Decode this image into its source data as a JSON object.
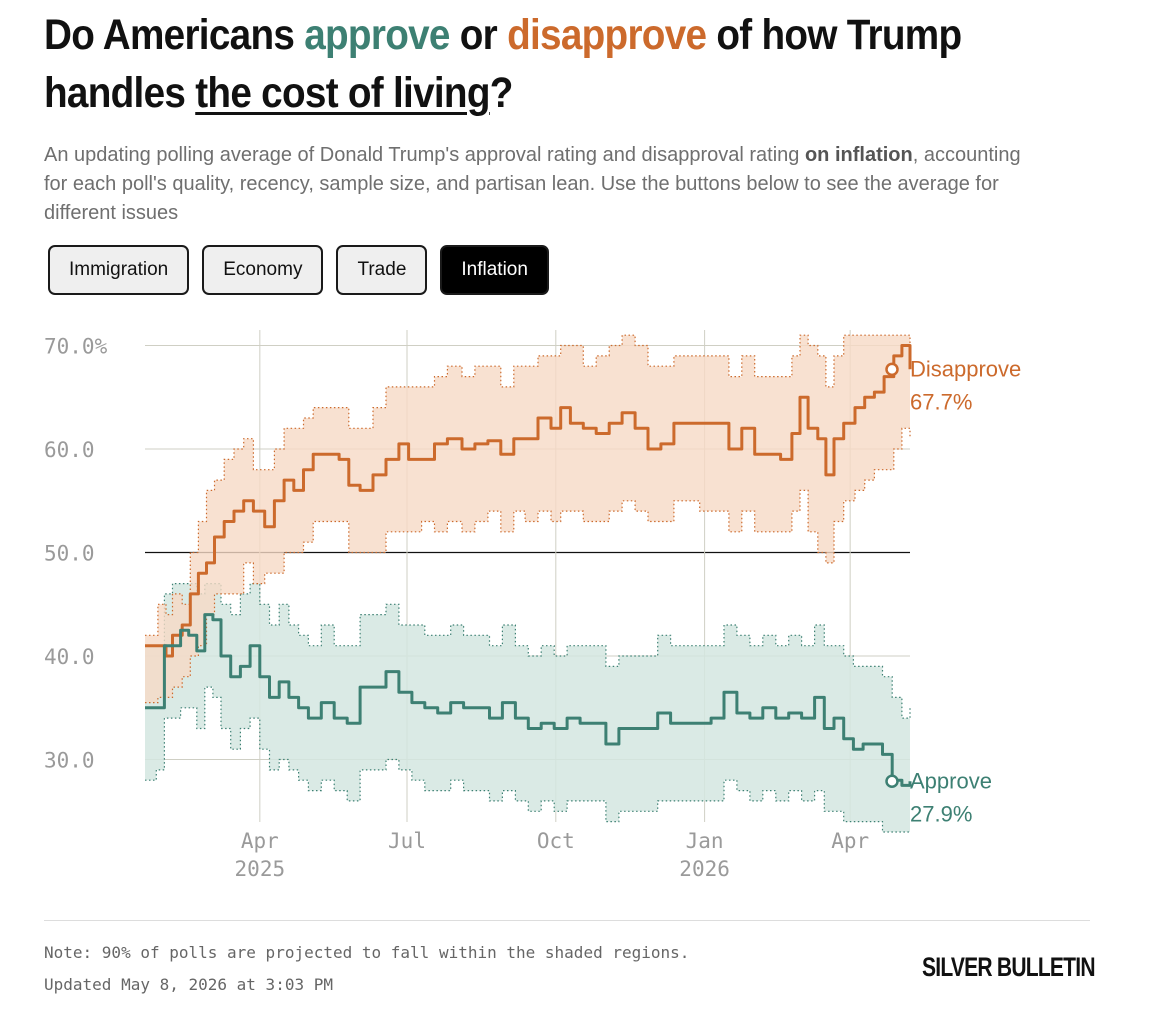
{
  "title": {
    "part1": "Do Americans ",
    "approve_word": "approve",
    "part2": " or ",
    "disapprove_word": "disapprove",
    "part3": " of how Trump handles ",
    "topic": "the cost of living",
    "part4": "?"
  },
  "subtitle": {
    "before": "An updating polling average of Donald Trump's approval rating and disapproval rating ",
    "bold": "on inflation",
    "after": ", accounting for each poll's quality, recency, sample size, and partisan lean. Use the buttons below to see the average for different issues"
  },
  "tabs": [
    {
      "label": "Immigration",
      "active": false
    },
    {
      "label": "Economy",
      "active": false
    },
    {
      "label": "Trade",
      "active": false
    },
    {
      "label": "Inflation",
      "active": true
    }
  ],
  "colors": {
    "approve": "#3d8073",
    "approve_band": "#d3e6e1",
    "disapprove": "#cc6a2c",
    "disapprove_band": "#f6d9c6",
    "grid": "#cfcfc4",
    "axis_text": "#9a9a9a"
  },
  "chart_data": {
    "type": "line",
    "x_range": [
      "2025-01-20",
      "2026-05-08"
    ],
    "ylim": [
      23,
      71.5
    ],
    "y_ticks": [
      {
        "value": 70,
        "label": "70.0%"
      },
      {
        "value": 60,
        "label": "60.0"
      },
      {
        "value": 50,
        "label": "50.0"
      },
      {
        "value": 40,
        "label": "40.0"
      },
      {
        "value": 30,
        "label": "30.0"
      }
    ],
    "x_ticks": [
      {
        "date": "2025-04-01",
        "label": "Apr",
        "year": "2025"
      },
      {
        "date": "2025-07-01",
        "label": "Jul",
        "year": ""
      },
      {
        "date": "2025-10-01",
        "label": "Oct",
        "year": ""
      },
      {
        "date": "2026-01-01",
        "label": "Jan",
        "year": "2026"
      },
      {
        "date": "2026-04-01",
        "label": "Apr",
        "year": ""
      }
    ],
    "reference_line": 50,
    "grid": true,
    "series": [
      {
        "name": "Disapprove",
        "end_label": "Disapprove",
        "end_value_label": "67.7%",
        "points": [
          [
            "2025-01-20",
            41
          ],
          [
            "2025-01-28",
            41
          ],
          [
            "2025-02-02",
            40
          ],
          [
            "2025-02-06",
            42
          ],
          [
            "2025-02-12",
            43
          ],
          [
            "2025-02-17",
            46
          ],
          [
            "2025-02-22",
            48
          ],
          [
            "2025-02-27",
            49
          ],
          [
            "2025-03-04",
            51.5
          ],
          [
            "2025-03-10",
            53
          ],
          [
            "2025-03-16",
            54
          ],
          [
            "2025-03-22",
            55
          ],
          [
            "2025-03-28",
            54
          ],
          [
            "2025-04-04",
            52.5
          ],
          [
            "2025-04-10",
            55
          ],
          [
            "2025-04-16",
            57
          ],
          [
            "2025-04-22",
            56
          ],
          [
            "2025-04-28",
            58
          ],
          [
            "2025-05-04",
            59.5
          ],
          [
            "2025-05-12",
            59.5
          ],
          [
            "2025-05-20",
            59
          ],
          [
            "2025-05-26",
            56.5
          ],
          [
            "2025-06-02",
            56
          ],
          [
            "2025-06-10",
            57.5
          ],
          [
            "2025-06-18",
            59
          ],
          [
            "2025-06-26",
            60.5
          ],
          [
            "2025-07-02",
            59
          ],
          [
            "2025-07-10",
            59
          ],
          [
            "2025-07-18",
            60.5
          ],
          [
            "2025-07-26",
            61
          ],
          [
            "2025-08-04",
            60
          ],
          [
            "2025-08-12",
            60.5
          ],
          [
            "2025-08-20",
            60.8
          ],
          [
            "2025-08-28",
            59.5
          ],
          [
            "2025-09-05",
            61
          ],
          [
            "2025-09-12",
            61
          ],
          [
            "2025-09-20",
            63
          ],
          [
            "2025-09-28",
            62
          ],
          [
            "2025-10-04",
            64
          ],
          [
            "2025-10-10",
            62.5
          ],
          [
            "2025-10-18",
            62
          ],
          [
            "2025-10-26",
            61.5
          ],
          [
            "2025-11-03",
            62.5
          ],
          [
            "2025-11-11",
            63.5
          ],
          [
            "2025-11-19",
            62
          ],
          [
            "2025-11-27",
            60
          ],
          [
            "2025-12-05",
            60.5
          ],
          [
            "2025-12-13",
            62.5
          ],
          [
            "2025-12-21",
            62.5
          ],
          [
            "2025-12-29",
            62.5
          ],
          [
            "2026-01-08",
            62.5
          ],
          [
            "2026-01-16",
            60
          ],
          [
            "2026-01-24",
            62
          ],
          [
            "2026-02-01",
            59.5
          ],
          [
            "2026-02-09",
            59.5
          ],
          [
            "2026-02-17",
            59
          ],
          [
            "2026-02-24",
            61.5
          ],
          [
            "2026-03-01",
            65
          ],
          [
            "2026-03-06",
            62
          ],
          [
            "2026-03-12",
            61
          ],
          [
            "2026-03-17",
            57.5
          ],
          [
            "2026-03-22",
            61
          ],
          [
            "2026-03-28",
            62.5
          ],
          [
            "2026-04-04",
            64
          ],
          [
            "2026-04-10",
            65
          ],
          [
            "2026-04-16",
            65.5
          ],
          [
            "2026-04-22",
            67
          ],
          [
            "2026-04-28",
            69
          ],
          [
            "2026-05-03",
            70
          ],
          [
            "2026-05-08",
            67.7
          ]
        ],
        "band": [
          [
            42,
            35.5
          ],
          [
            45,
            36
          ],
          [
            44,
            36
          ],
          [
            46,
            37
          ],
          [
            45,
            38
          ],
          [
            50,
            40
          ],
          [
            53,
            41
          ],
          [
            56,
            44
          ],
          [
            57,
            46
          ],
          [
            59,
            46
          ],
          [
            60,
            46
          ],
          [
            61,
            49
          ],
          [
            58,
            47
          ],
          [
            58,
            48
          ],
          [
            60,
            48
          ],
          [
            62,
            50
          ],
          [
            62,
            50
          ],
          [
            63,
            51
          ],
          [
            64,
            53
          ],
          [
            64,
            53
          ],
          [
            64,
            53
          ],
          [
            62,
            50
          ],
          [
            62,
            50
          ],
          [
            64,
            50
          ],
          [
            66,
            52
          ],
          [
            66,
            52
          ],
          [
            66,
            52
          ],
          [
            66,
            53
          ],
          [
            67,
            52
          ],
          [
            68,
            53
          ],
          [
            67,
            52
          ],
          [
            68,
            53
          ],
          [
            68,
            54
          ],
          [
            66,
            52
          ],
          [
            68,
            54
          ],
          [
            68,
            53
          ],
          [
            69,
            54
          ],
          [
            69,
            53
          ],
          [
            70,
            54
          ],
          [
            70,
            54
          ],
          [
            68,
            53
          ],
          [
            69,
            53
          ],
          [
            70,
            54
          ],
          [
            71,
            55
          ],
          [
            70,
            54
          ],
          [
            68,
            53
          ],
          [
            68,
            53
          ],
          [
            69,
            55
          ],
          [
            69,
            55
          ],
          [
            69,
            54
          ],
          [
            69,
            54
          ],
          [
            67,
            52
          ],
          [
            69,
            54
          ],
          [
            67,
            52
          ],
          [
            67,
            52
          ],
          [
            67,
            52
          ],
          [
            69,
            54
          ],
          [
            71,
            56
          ],
          [
            70,
            52
          ],
          [
            69,
            50
          ],
          [
            66,
            49
          ],
          [
            69,
            53
          ],
          [
            71,
            55
          ],
          [
            71,
            56
          ],
          [
            71,
            57
          ],
          [
            71,
            58
          ],
          [
            71,
            58
          ],
          [
            71,
            60
          ],
          [
            71,
            62
          ],
          [
            69,
            61
          ]
        ]
      },
      {
        "name": "Approve",
        "end_label": "Approve",
        "end_value_label": "27.9%",
        "points": [
          [
            "2025-01-20",
            35
          ],
          [
            "2025-01-27",
            35
          ],
          [
            "2025-02-01",
            41
          ],
          [
            "2025-02-06",
            41
          ],
          [
            "2025-02-11",
            42.5
          ],
          [
            "2025-02-16",
            42
          ],
          [
            "2025-02-21",
            40.5
          ],
          [
            "2025-02-26",
            44
          ],
          [
            "2025-03-03",
            43.5
          ],
          [
            "2025-03-08",
            40
          ],
          [
            "2025-03-14",
            38
          ],
          [
            "2025-03-20",
            39
          ],
          [
            "2025-03-26",
            41
          ],
          [
            "2025-04-01",
            38
          ],
          [
            "2025-04-07",
            36
          ],
          [
            "2025-04-13",
            37.5
          ],
          [
            "2025-04-19",
            36
          ],
          [
            "2025-04-25",
            35
          ],
          [
            "2025-05-01",
            34
          ],
          [
            "2025-05-09",
            35.5
          ],
          [
            "2025-05-17",
            34
          ],
          [
            "2025-05-25",
            33.5
          ],
          [
            "2025-06-02",
            37
          ],
          [
            "2025-06-10",
            37
          ],
          [
            "2025-06-18",
            38.5
          ],
          [
            "2025-06-26",
            36.5
          ],
          [
            "2025-07-04",
            35.5
          ],
          [
            "2025-07-12",
            35
          ],
          [
            "2025-07-20",
            34.5
          ],
          [
            "2025-07-28",
            35.5
          ],
          [
            "2025-08-05",
            35
          ],
          [
            "2025-08-13",
            35
          ],
          [
            "2025-08-21",
            34
          ],
          [
            "2025-08-29",
            35.5
          ],
          [
            "2025-09-06",
            34
          ],
          [
            "2025-09-14",
            33
          ],
          [
            "2025-09-22",
            33.5
          ],
          [
            "2025-09-30",
            33
          ],
          [
            "2025-10-08",
            34
          ],
          [
            "2025-10-16",
            33.5
          ],
          [
            "2025-10-24",
            33.5
          ],
          [
            "2025-11-01",
            31.5
          ],
          [
            "2025-11-09",
            33
          ],
          [
            "2025-11-17",
            33
          ],
          [
            "2025-11-25",
            33
          ],
          [
            "2025-12-03",
            34.5
          ],
          [
            "2025-12-11",
            33.5
          ],
          [
            "2025-12-19",
            33.5
          ],
          [
            "2025-12-27",
            33.5
          ],
          [
            "2026-01-05",
            34
          ],
          [
            "2026-01-13",
            36.5
          ],
          [
            "2026-01-21",
            34.5
          ],
          [
            "2026-01-29",
            34
          ],
          [
            "2026-02-06",
            35
          ],
          [
            "2026-02-14",
            34
          ],
          [
            "2026-02-22",
            34.5
          ],
          [
            "2026-03-02",
            34
          ],
          [
            "2026-03-10",
            36
          ],
          [
            "2026-03-16",
            33
          ],
          [
            "2026-03-22",
            34
          ],
          [
            "2026-03-28",
            32
          ],
          [
            "2026-04-03",
            31
          ],
          [
            "2026-04-09",
            31.5
          ],
          [
            "2026-04-15",
            31.5
          ],
          [
            "2026-04-21",
            30.5
          ],
          [
            "2026-04-27",
            28
          ],
          [
            "2026-05-03",
            27.5
          ],
          [
            "2026-05-08",
            27.9
          ]
        ],
        "band": [
          [
            41,
            28
          ],
          [
            41,
            29
          ],
          [
            46,
            34
          ],
          [
            47,
            34
          ],
          [
            47,
            35
          ],
          [
            47,
            35
          ],
          [
            46,
            33
          ],
          [
            47,
            37
          ],
          [
            47,
            36
          ],
          [
            45,
            33
          ],
          [
            44,
            31
          ],
          [
            46,
            33
          ],
          [
            47,
            34
          ],
          [
            45,
            31
          ],
          [
            43,
            29
          ],
          [
            45,
            30
          ],
          [
            43,
            29
          ],
          [
            42,
            28
          ],
          [
            41,
            27
          ],
          [
            43,
            28
          ],
          [
            41,
            27
          ],
          [
            41,
            26
          ],
          [
            44,
            29
          ],
          [
            44,
            29
          ],
          [
            45,
            30
          ],
          [
            43,
            29
          ],
          [
            43,
            28
          ],
          [
            42,
            27
          ],
          [
            42,
            27
          ],
          [
            43,
            28
          ],
          [
            42,
            27
          ],
          [
            42,
            27
          ],
          [
            41,
            26
          ],
          [
            43,
            27
          ],
          [
            41,
            26
          ],
          [
            40,
            25
          ],
          [
            41,
            26
          ],
          [
            40,
            25
          ],
          [
            41,
            26
          ],
          [
            41,
            26
          ],
          [
            41,
            26
          ],
          [
            39,
            24
          ],
          [
            40,
            25
          ],
          [
            40,
            25
          ],
          [
            40,
            25
          ],
          [
            42,
            26
          ],
          [
            41,
            26
          ],
          [
            41,
            26
          ],
          [
            41,
            26
          ],
          [
            41,
            26
          ],
          [
            43,
            28
          ],
          [
            42,
            27
          ],
          [
            41,
            26
          ],
          [
            42,
            27
          ],
          [
            41,
            26
          ],
          [
            42,
            27
          ],
          [
            41,
            26
          ],
          [
            43,
            27
          ],
          [
            41,
            25
          ],
          [
            41,
            25
          ],
          [
            40,
            24
          ],
          [
            39,
            24
          ],
          [
            39,
            24
          ],
          [
            39,
            24
          ],
          [
            38,
            23
          ],
          [
            36,
            23
          ],
          [
            34,
            23
          ],
          [
            35,
            23
          ]
        ]
      }
    ]
  },
  "note": "Note: 90% of polls are projected to fall within the shaded regions.",
  "updated": "Updated May 8, 2026 at 3:03 PM",
  "logo": "SILVER BULLETIN"
}
